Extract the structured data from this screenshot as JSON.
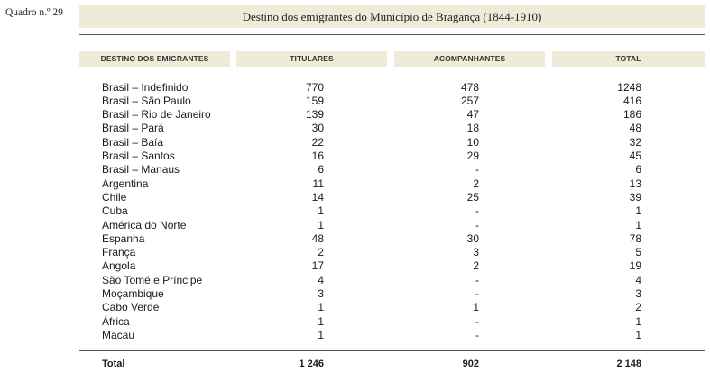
{
  "label": "Quadro n.º 29",
  "title": "Destino dos emigrantes do Município de Bragança (1844-1910)",
  "headers": [
    "DESTINO DOS EMIGRANTES",
    "TITULARES",
    "ACOMPANHANTES",
    "TOTAL"
  ],
  "rows": [
    {
      "destino": "Brasil – Indefinido",
      "titulares": "770",
      "acompanhantes": "478",
      "total": "1248"
    },
    {
      "destino": "Brasil – São Paulo",
      "titulares": "159",
      "acompanhantes": "257",
      "total": "416"
    },
    {
      "destino": "Brasil – Rio de Janeiro",
      "titulares": "139",
      "acompanhantes": "47",
      "total": "186"
    },
    {
      "destino": "Brasil – Pará",
      "titulares": "30",
      "acompanhantes": "18",
      "total": "48"
    },
    {
      "destino": "Brasil – Baía",
      "titulares": "22",
      "acompanhantes": "10",
      "total": "32"
    },
    {
      "destino": "Brasil – Santos",
      "titulares": "16",
      "acompanhantes": "29",
      "total": "45"
    },
    {
      "destino": "Brasil – Manaus",
      "titulares": "6",
      "acompanhantes": "-",
      "total": "6"
    },
    {
      "destino": "Argentina",
      "titulares": "11",
      "acompanhantes": "2",
      "total": "13"
    },
    {
      "destino": "Chile",
      "titulares": "14",
      "acompanhantes": "25",
      "total": "39"
    },
    {
      "destino": "Cuba",
      "titulares": "1",
      "acompanhantes": "-",
      "total": "1"
    },
    {
      "destino": "América do Norte",
      "titulares": "1",
      "acompanhantes": "-",
      "total": "1"
    },
    {
      "destino": "Espanha",
      "titulares": "48",
      "acompanhantes": "30",
      "total": "78"
    },
    {
      "destino": "França",
      "titulares": "2",
      "acompanhantes": "3",
      "total": "5"
    },
    {
      "destino": "Angola",
      "titulares": "17",
      "acompanhantes": "2",
      "total": "19"
    },
    {
      "destino": "São Tomé e Príncipe",
      "titulares": "4",
      "acompanhantes": "-",
      "total": "4"
    },
    {
      "destino": "Moçambique",
      "titulares": "3",
      "acompanhantes": "-",
      "total": "3"
    },
    {
      "destino": "Cabo Verde",
      "titulares": "1",
      "acompanhantes": "1",
      "total": "2"
    },
    {
      "destino": "África",
      "titulares": "1",
      "acompanhantes": "-",
      "total": "1"
    },
    {
      "destino": "Macau",
      "titulares": "1",
      "acompanhantes": "-",
      "total": "1"
    }
  ],
  "total": {
    "label": "Total",
    "titulares": "1 246",
    "acompanhantes": "902",
    "total": "2 148"
  }
}
